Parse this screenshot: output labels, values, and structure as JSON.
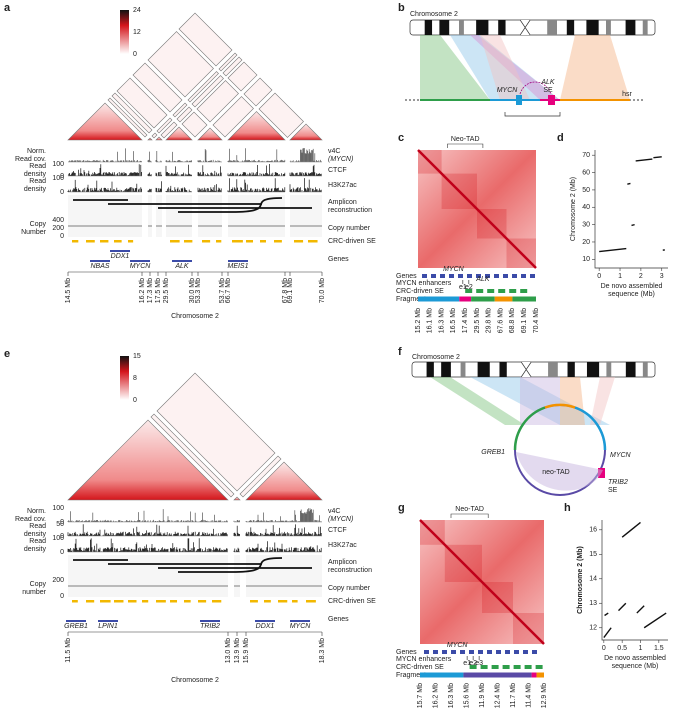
{
  "panel_a": {
    "label": "a",
    "colorbar_ticks": [
      24,
      12,
      0
    ],
    "left_labels": [
      [
        "Norm.",
        "Read cov."
      ],
      [
        "Read",
        "density"
      ],
      [
        "Read",
        "density"
      ],
      [
        "Copy",
        "Number"
      ]
    ],
    "scales": {
      "ctcf": [
        100,
        0
      ],
      "h3k27ac": [
        100,
        0
      ],
      "copy": [
        400,
        200,
        0
      ]
    },
    "right_labels": [
      [
        "v4C",
        "(MYCN)"
      ],
      [
        "CTCF"
      ],
      [
        "H3K27ac"
      ],
      [
        "Amplicon",
        "reconstruction"
      ],
      [
        "Copy number"
      ],
      [
        "CRC-driven SE"
      ],
      [
        "Genes"
      ]
    ],
    "genes": [
      "DDX1",
      "NBAS",
      "MYCN",
      "ALK",
      "MEIS1"
    ],
    "coordinates": [
      "14.5 Mb",
      "16.2 Mb",
      "17.3 Mb",
      "17.5 Mb",
      "29.5 Mb",
      "30.0 Mb",
      "53.3 Mb",
      "53.7 Mb",
      "66.7 Mb",
      "67.8 Mb",
      "69.1 Mb",
      "70.0 Mb"
    ],
    "axis_title": "Chromosome 2"
  },
  "panel_b": {
    "label": "b",
    "chromosome": "Chromosome 2",
    "genes": [
      "MYCN",
      "ALK",
      "SE"
    ],
    "hsr": "hsr"
  },
  "panel_c": {
    "label": "c",
    "neo_tad": "Neo-TAD",
    "rows": [
      "Genes",
      "MYCN enhancers",
      "CRC-driven SE",
      "Fragments"
    ],
    "genes": [
      "MYCN",
      "ALK"
    ],
    "enhancers": [
      "e1",
      "e2"
    ],
    "coordinates": [
      "15.2 Mb",
      "16.1 Mb",
      "16.3 Mb",
      "16.5 Mb",
      "17.4 Mb",
      "29.5 Mb",
      "29.8 Mb",
      "67.6 Mb",
      "68.8 Mb",
      "69.1 Mb",
      "70.4 Mb"
    ]
  },
  "panel_d": {
    "label": "d",
    "ylabel": "Chromosome 2 (Mb)",
    "xlabel": [
      "De novo assembled",
      "sequence (Mb)"
    ],
    "xlim": [
      -0.2,
      3.3
    ],
    "ylim": [
      5,
      73
    ],
    "xticks": [
      0,
      1,
      2,
      3
    ],
    "yticks": [
      10,
      20,
      30,
      40,
      50,
      60,
      70
    ],
    "segments": [
      {
        "x0": 0,
        "x1": 1.3,
        "y0": 14.5,
        "y1": 16.2
      },
      {
        "x0": 1.35,
        "x1": 1.5,
        "y0": 53.3,
        "y1": 53.7
      },
      {
        "x0": 1.55,
        "x1": 1.7,
        "y0": 29.5,
        "y1": 30.0
      },
      {
        "x0": 1.75,
        "x1": 2.55,
        "y0": 66.7,
        "y1": 67.8
      },
      {
        "x0": 2.6,
        "x1": 3.0,
        "y0": 68.6,
        "y1": 69.1
      },
      {
        "x0": 3.05,
        "x1": 3.15,
        "y0": 15.3,
        "y1": 15.4
      }
    ]
  },
  "panel_e": {
    "label": "e",
    "colorbar_ticks": [
      15,
      8,
      0
    ],
    "left_labels": [
      [
        "Norm.",
        "Read cov."
      ],
      [
        "Read",
        "density"
      ],
      [
        "Read",
        "density"
      ],
      [
        "Copy",
        "number"
      ]
    ],
    "scales": {
      "v4c": [
        100,
        0
      ],
      "ctcf": [
        50,
        0
      ],
      "h3k27ac": [
        100,
        0
      ],
      "copy": [
        200,
        0
      ]
    },
    "right_labels": [
      [
        "v4C",
        "(MYCN)"
      ],
      [
        "CTCF"
      ],
      [
        "H3K27ac"
      ],
      [
        "Amplicon",
        "reconstruction"
      ],
      [
        "Copy number"
      ],
      [
        "CRC-driven SE"
      ],
      [
        "Genes"
      ]
    ],
    "genes": [
      "GREB1",
      "LPIN1",
      "TRIB2",
      "DDX1",
      "MYCN"
    ],
    "coordinates": [
      "11.5 Mb",
      "13.0 Mb",
      "13.9 Mb",
      "15.9 Mb",
      "18.3 Mb"
    ],
    "axis_title": "Chromosome 2"
  },
  "panel_f": {
    "label": "f",
    "chromosome": "Chromosome 2",
    "labels": [
      "GREB1",
      "MYCN",
      "neo-TAD",
      "TRIB2",
      "SE"
    ]
  },
  "panel_g": {
    "label": "g",
    "neo_tad": "Neo-TAD",
    "rows": [
      "Genes",
      "MYCN enhancers",
      "CRC-driven SE",
      "Fragments"
    ],
    "genes": [
      "MYCN"
    ],
    "enhancers": [
      "e1",
      "e2",
      "e3"
    ],
    "coordinates": [
      "15.7 Mb",
      "16.2 Mb",
      "16.3 Mb",
      "15.6 Mb",
      "11.9 Mb",
      "12.4 Mb",
      "11.7 Mb",
      "11.4 Mb",
      "12.9 Mb"
    ]
  },
  "panel_h": {
    "label": "h",
    "ylabel": "Chromosome 2 (Mb)",
    "xlabel": [
      "De novo assembled",
      "sequence (Mb)"
    ],
    "xlim": [
      -0.05,
      1.75
    ],
    "ylim": [
      11.5,
      16.4
    ],
    "xticks": [
      0,
      0.5,
      1,
      1.5
    ],
    "yticks": [
      12,
      13,
      14,
      15,
      16
    ],
    "segments": [
      {
        "x0": 0,
        "x1": 0.2,
        "y0": 11.6,
        "y1": 12.0
      },
      {
        "x0": 0.02,
        "x1": 0.12,
        "y0": 12.5,
        "y1": 12.6
      },
      {
        "x0": 0.4,
        "x1": 0.6,
        "y0": 12.7,
        "y1": 13.0
      },
      {
        "x0": 0.5,
        "x1": 1.0,
        "y0": 15.7,
        "y1": 16.3
      },
      {
        "x0": 0.9,
        "x1": 1.1,
        "y0": 12.6,
        "y1": 12.9
      },
      {
        "x0": 1.1,
        "x1": 1.7,
        "y0": 12.0,
        "y1": 12.6
      }
    ]
  }
}
